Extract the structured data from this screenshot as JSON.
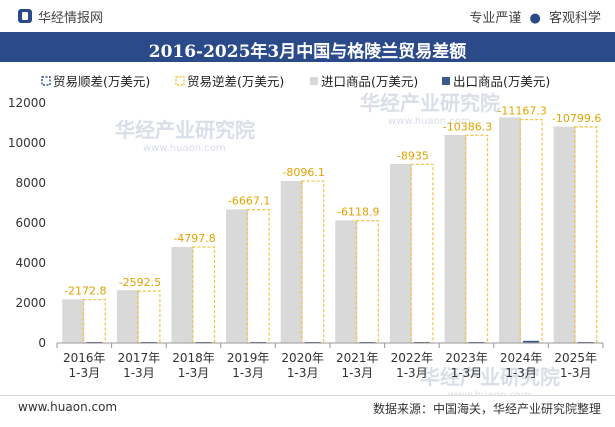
{
  "header": {
    "brand": "华经情报网",
    "link_1": "专业严谨",
    "dot": "●",
    "link_2": "客观科学"
  },
  "title": "2016-2025年3月中国与格陵兰贸易差额",
  "footer": {
    "left": "www.huaon.com",
    "right": "数据来源：中国海关，华经产业研究院整理"
  },
  "watermark": {
    "text": "华经产业研究院",
    "url": "www.huaon.com"
  },
  "colors": {
    "surplus": "#2a4a8a",
    "deficit": "#f5c242",
    "imports": "#d9d9d9",
    "exports": "#3e5a8c"
  },
  "chart_data": {
    "type": "bar",
    "title": "2016-2025年3月中国与格陵兰贸易差额",
    "categories": [
      "2016年\n1-3月",
      "2017年\n1-3月",
      "2018年\n1-3月",
      "2019年\n1-3月",
      "2020年\n1-3月",
      "2021年\n1-3月",
      "2022年\n1-3月",
      "2023年\n1-3月",
      "2024年\n1-3月",
      "2025年\n1-3月"
    ],
    "ylim": [
      0,
      12000
    ],
    "yticks": [
      0,
      2000,
      4000,
      6000,
      8000,
      10000,
      12000
    ],
    "legend_position": "top",
    "series": [
      {
        "name": "贸易顺差(万美元)",
        "values": [
          0,
          0,
          0,
          0,
          0,
          0,
          0,
          0,
          0,
          0
        ]
      },
      {
        "name": "贸易逆差(万美元)",
        "values": [
          -2172.8,
          -2592.5,
          -4797.8,
          -6667.1,
          -8096.1,
          -6118.9,
          -8935,
          -10386.3,
          -11167.3,
          -10799.6
        ]
      },
      {
        "name": "进口商品(万美元)",
        "values": [
          2180,
          2640,
          4800,
          6680,
          8100,
          6130,
          8950,
          10400,
          11280,
          10820
        ]
      },
      {
        "name": "出口商品(万美元)",
        "values": [
          10,
          50,
          5,
          10,
          5,
          10,
          15,
          15,
          110,
          20
        ]
      }
    ],
    "data_labels": [
      "-2172.8",
      "-2592.5",
      "-4797.8",
      "-6667.1",
      "-8096.1",
      "-6118.9",
      "-8935",
      "-10386.3",
      "-11167.3",
      "-10799.6"
    ]
  }
}
